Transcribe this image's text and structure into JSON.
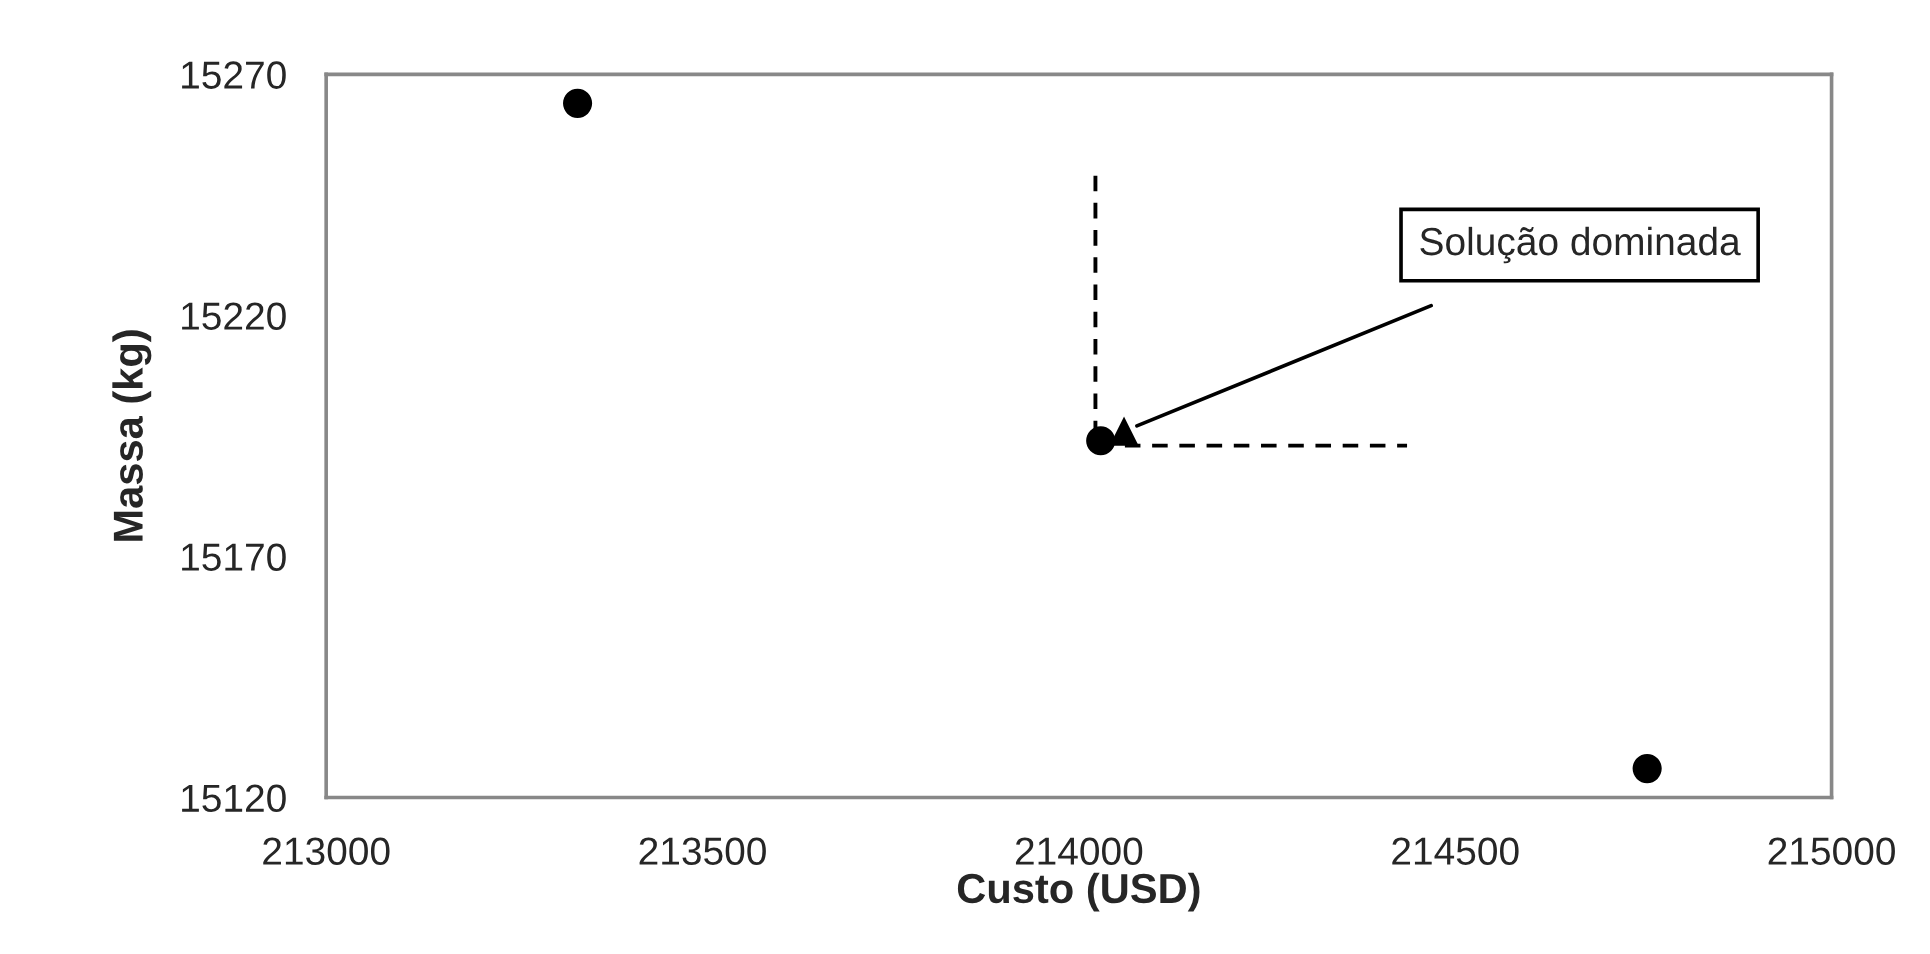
{
  "chart_data": {
    "type": "scatter",
    "xlabel": "Custo (USD)",
    "ylabel": "Massa (kg)",
    "xlim": [
      213000,
      215000
    ],
    "xticks": [
      213000,
      213500,
      214000,
      214500,
      215000
    ],
    "ylim": [
      15120,
      15270
    ],
    "yticks": [
      15120,
      15170,
      15220,
      15270
    ],
    "grid": false,
    "marker": "circle",
    "series": [
      {
        "color": "#000000",
        "x": [
          213334,
          214029,
          214755
        ],
        "values": [
          15264,
          15194,
          15126
        ]
      },
      {
        "color": "#000000",
        "marker": "triangle",
        "x": [
          214060
        ],
        "values": [
          15196
        ]
      },
      {
        "type": "line",
        "color": "#000000",
        "marker": "none",
        "line_style": "dashed",
        "x": [
          214022,
          214022,
          214436
        ],
        "values": [
          15249,
          15193,
          15193
        ]
      }
    ],
    "annotations": [
      {
        "text": "Solução dominada",
        "x": 214060,
        "y": 15196
      }
    ]
  }
}
